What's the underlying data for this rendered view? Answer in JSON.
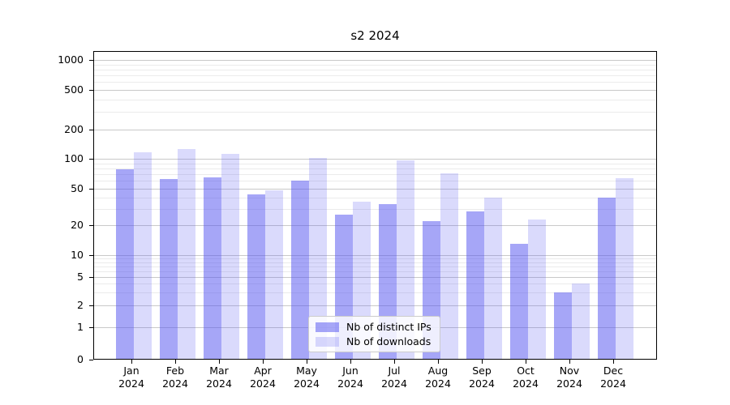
{
  "chart_data": {
    "type": "bar",
    "title": "s2 2024",
    "categories": [
      "Jan 2024",
      "Feb 2024",
      "Mar 2024",
      "Apr 2024",
      "May 2024",
      "Jun 2024",
      "Jul 2024",
      "Aug 2024",
      "Sep 2024",
      "Oct 2024",
      "Nov 2024",
      "Dec 2024"
    ],
    "series": [
      {
        "name": "Nb of distinct IPs",
        "color": "rgba(85,85,240,0.52)",
        "values": [
          78,
          62,
          65,
          43,
          60,
          26,
          34,
          22,
          28,
          13,
          3,
          40
        ]
      },
      {
        "name": "Nb of downloads",
        "color": "rgba(85,85,240,0.22)",
        "values": [
          116,
          127,
          112,
          48,
          102,
          36,
          96,
          71,
          40,
          23,
          4,
          64
        ]
      }
    ],
    "xlabel": "",
    "ylabel": "",
    "y_axis": {
      "scale": "asinh-like: linear 0-1, log above 1",
      "tick_values": [
        0,
        1,
        2,
        5,
        10,
        20,
        50,
        100,
        200,
        500,
        1000
      ],
      "ticks": [
        {
          "v": 0,
          "f": 0.0
        },
        {
          "v": 1,
          "f": 0.105
        },
        {
          "v": 2,
          "f": 0.176
        },
        {
          "v": 5,
          "f": 0.268
        },
        {
          "v": 10,
          "f": 0.339
        },
        {
          "v": 20,
          "f": 0.436
        },
        {
          "v": 50,
          "f": 0.554
        },
        {
          "v": 100,
          "f": 0.651
        },
        {
          "v": 200,
          "f": 0.745
        },
        {
          "v": 500,
          "f": 0.874
        },
        {
          "v": 1000,
          "f": 0.971
        }
      ],
      "minor_gridlines": [
        3,
        4,
        6,
        7,
        8,
        9,
        30,
        40,
        60,
        70,
        80,
        90,
        300,
        400,
        600,
        700,
        800,
        900
      ]
    },
    "grid": {
      "major_color": "#c9c9c9",
      "minor_color": "#ebebeb",
      "vertical": false
    },
    "legend": {
      "position": "lower center",
      "entries": [
        "Nb of distinct IPs",
        "Nb of downloads"
      ]
    },
    "ylim": [
      0,
      1200
    ]
  }
}
